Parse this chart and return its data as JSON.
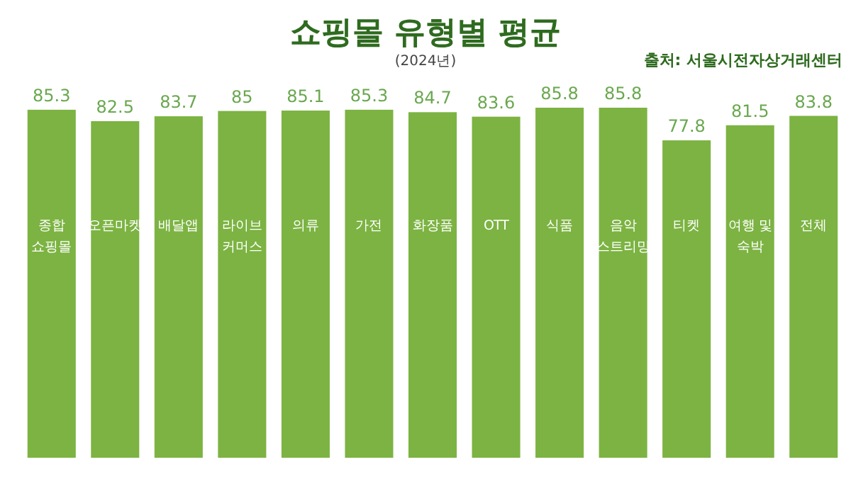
{
  "chart_data": {
    "type": "bar",
    "title": "쇼핑몰 유형별 평균",
    "subtitle": "(2024년)",
    "annotations": [
      "출처: 서울시전자상거래센터"
    ],
    "categories": [
      "종합 쇼핑몰",
      "오픈마켓",
      "배달앱",
      "라이브 커머스",
      "의류",
      "가전",
      "화장품",
      "OTT",
      "식품",
      "음악 스트리밍",
      "티켓",
      "여행 및 숙박",
      "전체"
    ],
    "values": [
      85.3,
      82.5,
      83.7,
      85,
      85.1,
      85.3,
      84.7,
      83.6,
      85.8,
      85.8,
      77.8,
      81.5,
      83.8
    ],
    "color": "#7cb342",
    "data_labels": true
  }
}
